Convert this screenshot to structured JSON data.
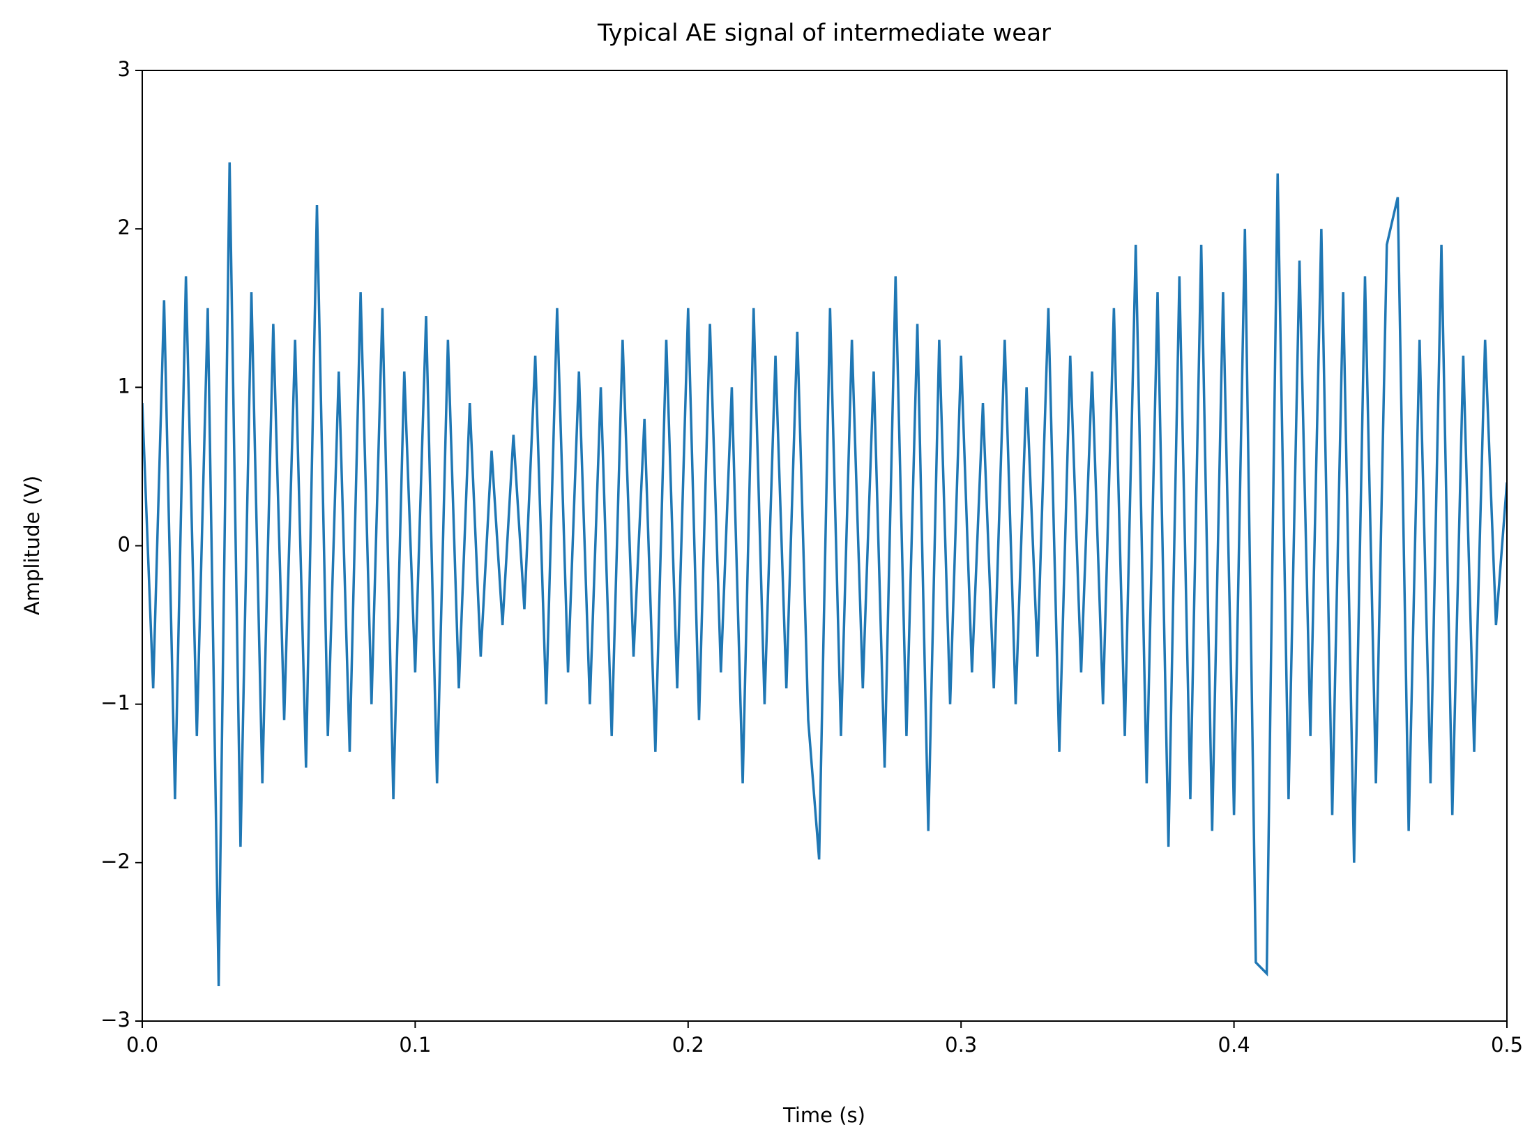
{
  "chart_data": {
    "type": "line",
    "title": "Typical AE signal of intermediate wear",
    "xlabel": "Time (s)",
    "ylabel": "Amplitude (V)",
    "color": "#1f77b4",
    "grid": false,
    "xlim": [
      0,
      0.5
    ],
    "ylim": [
      -3,
      3
    ],
    "xticks": [
      {
        "value": 0,
        "label": "0.0"
      },
      0.1,
      0.2,
      0.3,
      0.4,
      0.5
    ],
    "yticks": [
      {
        "value": -3,
        "label": "−3"
      },
      {
        "value": -2,
        "label": "−2"
      },
      {
        "value": -1,
        "label": "−1"
      },
      0,
      1,
      2,
      3
    ],
    "x": [
      0,
      0.004,
      0.008,
      0.012,
      0.016,
      0.02,
      0.024,
      0.028,
      0.032,
      0.036,
      0.04,
      0.044,
      0.048,
      0.052,
      0.056,
      0.06,
      0.064,
      0.068,
      0.072,
      0.076,
      0.08,
      0.084,
      0.088,
      0.092,
      0.096,
      0.1,
      0.104,
      0.108,
      0.112,
      0.116,
      0.12,
      0.124,
      0.128,
      0.132,
      0.136,
      0.14,
      0.144,
      0.148,
      0.152,
      0.156,
      0.16,
      0.164,
      0.168,
      0.172,
      0.176,
      0.18,
      0.184,
      0.188,
      0.192,
      0.196,
      0.2,
      0.204,
      0.208,
      0.212,
      0.216,
      0.22,
      0.224,
      0.228,
      0.232,
      0.236,
      0.24,
      0.244,
      0.248,
      0.252,
      0.256,
      0.26,
      0.264,
      0.268,
      0.272,
      0.276,
      0.28,
      0.284,
      0.288,
      0.292,
      0.296,
      0.3,
      0.304,
      0.308,
      0.312,
      0.316,
      0.32,
      0.324,
      0.328,
      0.332,
      0.336,
      0.34,
      0.344,
      0.348,
      0.352,
      0.356,
      0.36,
      0.364,
      0.368,
      0.372,
      0.376,
      0.38,
      0.384,
      0.388,
      0.392,
      0.396,
      0.4,
      0.404,
      0.408,
      0.412,
      0.416,
      0.42,
      0.424,
      0.428,
      0.432,
      0.436,
      0.44,
      0.444,
      0.448,
      0.452,
      0.456,
      0.46,
      0.464,
      0.468,
      0.472,
      0.476,
      0.48,
      0.484,
      0.488,
      0.492,
      0.496,
      0.5
    ],
    "values": [
      0.9,
      -0.9,
      1.55,
      -1.6,
      1.7,
      -1.2,
      1.5,
      -2.78,
      2.42,
      -1.9,
      1.6,
      -1.5,
      1.4,
      -1.1,
      1.3,
      -1.4,
      2.15,
      -1.2,
      1.1,
      -1.3,
      1.6,
      -1.0,
      1.5,
      -1.6,
      1.1,
      -0.8,
      1.45,
      -1.5,
      1.3,
      -0.9,
      0.9,
      -0.7,
      0.6,
      -0.5,
      0.7,
      -0.4,
      1.2,
      -1.0,
      1.5,
      -0.8,
      1.1,
      -1.0,
      1.0,
      -1.2,
      1.3,
      -0.7,
      0.8,
      -1.3,
      1.3,
      -0.9,
      1.5,
      -1.1,
      1.4,
      -0.8,
      1.0,
      -1.5,
      1.5,
      -1.0,
      1.2,
      -0.9,
      1.35,
      -1.1,
      -1.98,
      1.5,
      -1.2,
      1.3,
      -0.9,
      1.1,
      -1.4,
      1.7,
      -1.2,
      1.4,
      -1.8,
      1.3,
      -1.0,
      1.2,
      -0.8,
      0.9,
      -0.9,
      1.3,
      -1.0,
      1.0,
      -0.7,
      1.5,
      -1.3,
      1.2,
      -0.8,
      1.1,
      -1.0,
      1.5,
      -1.2,
      1.9,
      -1.5,
      1.6,
      -1.9,
      1.7,
      -1.6,
      1.9,
      -1.8,
      1.6,
      -1.7,
      2.0,
      -2.63,
      -2.7,
      2.35,
      -1.6,
      1.8,
      -1.2,
      2.0,
      -1.7,
      1.6,
      -2.0,
      1.7,
      -1.5,
      1.9,
      2.2,
      -1.8,
      1.3,
      -1.5,
      1.9,
      -1.7,
      1.2,
      -1.3,
      1.3,
      -0.5,
      0.4
    ]
  }
}
